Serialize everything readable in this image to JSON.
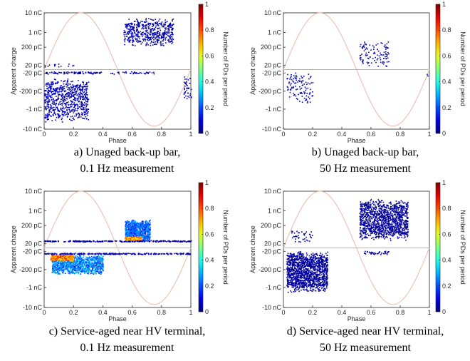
{
  "chart_data": [
    {
      "type": "scatter",
      "caption": [
        "a) Unaged back-up bar,",
        "0.1 Hz measurement"
      ],
      "xlabel": "Phase",
      "ylabel": "Apparent charge",
      "colorbar_label": "Number of PDs per period",
      "x_ticks": [
        "0",
        "0.2",
        "0.4",
        "0.6",
        "0.8",
        "1"
      ],
      "y_ticks": [
        "10 nC",
        "1 nC",
        "200 pC",
        "20 pC",
        "-20 pC",
        "-200 pC",
        "-1 nC",
        "-10 nC"
      ],
      "colorbar_ticks": [
        "0",
        "0.2",
        "0.4",
        "0.6",
        "0.8",
        "1"
      ],
      "xlim": [
        0,
        1
      ],
      "clim": [
        0,
        1
      ],
      "clusters": [
        {
          "x": [
            0.54,
            0.88
          ],
          "y": [
            0.45,
            1.0
          ],
          "count": 520,
          "level": 0.05
        },
        {
          "x": [
            0.0,
            0.3
          ],
          "y": [
            -1.0,
            -0.15
          ],
          "count": 700,
          "level": 0.06
        },
        {
          "x": [
            0.0,
            0.4
          ],
          "y": [
            -0.08,
            -0.03
          ],
          "count": 90,
          "level": 0.05
        },
        {
          "x": [
            0.45,
            0.75
          ],
          "y": [
            -0.08,
            -0.03
          ],
          "count": 40,
          "level": 0.05
        },
        {
          "x": [
            0.95,
            1.0
          ],
          "y": [
            -0.6,
            -0.1
          ],
          "count": 40,
          "level": 0.05
        },
        {
          "x": [
            0.0,
            0.2
          ],
          "y": [
            0.05,
            0.12
          ],
          "count": 14,
          "level": 0.05
        }
      ]
    },
    {
      "type": "scatter",
      "caption": [
        "b) Unaged back-up bar,",
        "50 Hz measurement"
      ],
      "xlabel": "Phase",
      "ylabel": "Apparent charge",
      "colorbar_label": "Number of PDs per period",
      "x_ticks": [
        "0",
        "0.2",
        "0.4",
        "0.6",
        "0.8",
        "1"
      ],
      "y_ticks": [
        "10 nC",
        "1 nC",
        "200 pC",
        "20 pC",
        "-20 pC",
        "-200 pC",
        "-1 nC",
        "-10 nC"
      ],
      "colorbar_ticks": [
        "0",
        "0.2",
        "0.4",
        "0.6",
        "0.8",
        "1"
      ],
      "xlim": [
        0,
        1
      ],
      "clim": [
        0,
        1
      ],
      "clusters": [
        {
          "x": [
            0.52,
            0.72
          ],
          "y": [
            0.05,
            0.55
          ],
          "count": 110,
          "level": 0.05
        },
        {
          "x": [
            0.02,
            0.2
          ],
          "y": [
            -0.65,
            -0.05
          ],
          "count": 110,
          "level": 0.05
        },
        {
          "x": [
            0.98,
            1.0
          ],
          "y": [
            -0.12,
            -0.08
          ],
          "count": 2,
          "level": 0.05
        }
      ]
    },
    {
      "type": "scatter",
      "caption": [
        "c) Service-aged near HV terminal,",
        "0.1 Hz measurement"
      ],
      "xlabel": "Phase",
      "ylabel": "Apparent charge",
      "colorbar_label": "Number of PDs per period",
      "x_ticks": [
        "0",
        "0.2",
        "0.4",
        "0.6",
        "0.8",
        "1"
      ],
      "y_ticks": [
        "10 nC",
        "1 nC",
        "200 pC",
        "20 pC",
        "-20 pC",
        "-200 pC",
        "-1 nC",
        "-10 nC"
      ],
      "colorbar_ticks": [
        "0",
        "0.2",
        "0.4",
        "0.6",
        "0.8",
        "1"
      ],
      "xlim": [
        0,
        1
      ],
      "clim": [
        0,
        1
      ],
      "clusters": [
        {
          "x": [
            0.55,
            0.72
          ],
          "y": [
            0.12,
            0.55
          ],
          "count": 900,
          "level": 0.22
        },
        {
          "x": [
            0.55,
            0.66
          ],
          "y": [
            0.13,
            0.22
          ],
          "count": 240,
          "level": 0.72
        },
        {
          "x": [
            0.05,
            0.4
          ],
          "y": [
            -0.5,
            -0.12
          ],
          "count": 1200,
          "level": 0.25
        },
        {
          "x": [
            0.04,
            0.2
          ],
          "y": [
            -0.25,
            -0.12
          ],
          "count": 360,
          "level": 0.75
        },
        {
          "x": [
            0.0,
            1.0
          ],
          "y": [
            0.12,
            0.15
          ],
          "count": 260,
          "level": 0.06
        },
        {
          "x": [
            0.0,
            1.0
          ],
          "y": [
            -0.12,
            -0.09
          ],
          "count": 260,
          "level": 0.06
        }
      ]
    },
    {
      "type": "scatter",
      "caption": [
        "d) Service-aged near HV terminal,",
        "50 Hz measurement"
      ],
      "xlabel": "Phase",
      "ylabel": "Apparent charge",
      "colorbar_label": "Number of PDs per period",
      "x_ticks": [
        "0",
        "0.2",
        "0.4",
        "0.6",
        "0.8",
        "1"
      ],
      "y_ticks": [
        "10 nC",
        "1 nC",
        "200 pC",
        "20 pC",
        "-20 pC",
        "-200 pC",
        "-1 nC",
        "-10 nC"
      ],
      "colorbar_ticks": [
        "0",
        "0.2",
        "0.4",
        "0.6",
        "0.8",
        "1"
      ],
      "xlim": [
        0,
        1
      ],
      "clim": [
        0,
        1
      ],
      "clusters": [
        {
          "x": [
            0.52,
            0.85
          ],
          "y": [
            0.15,
            0.95
          ],
          "count": 1300,
          "level": 0.03
        },
        {
          "x": [
            0.02,
            0.3
          ],
          "y": [
            -0.85,
            -0.05
          ],
          "count": 1400,
          "level": 0.03
        },
        {
          "x": [
            0.05,
            0.2
          ],
          "y": [
            0.1,
            0.35
          ],
          "count": 40,
          "level": 0.03
        },
        {
          "x": [
            0.55,
            0.72
          ],
          "y": [
            -0.12,
            -0.05
          ],
          "count": 40,
          "level": 0.03
        }
      ]
    }
  ]
}
